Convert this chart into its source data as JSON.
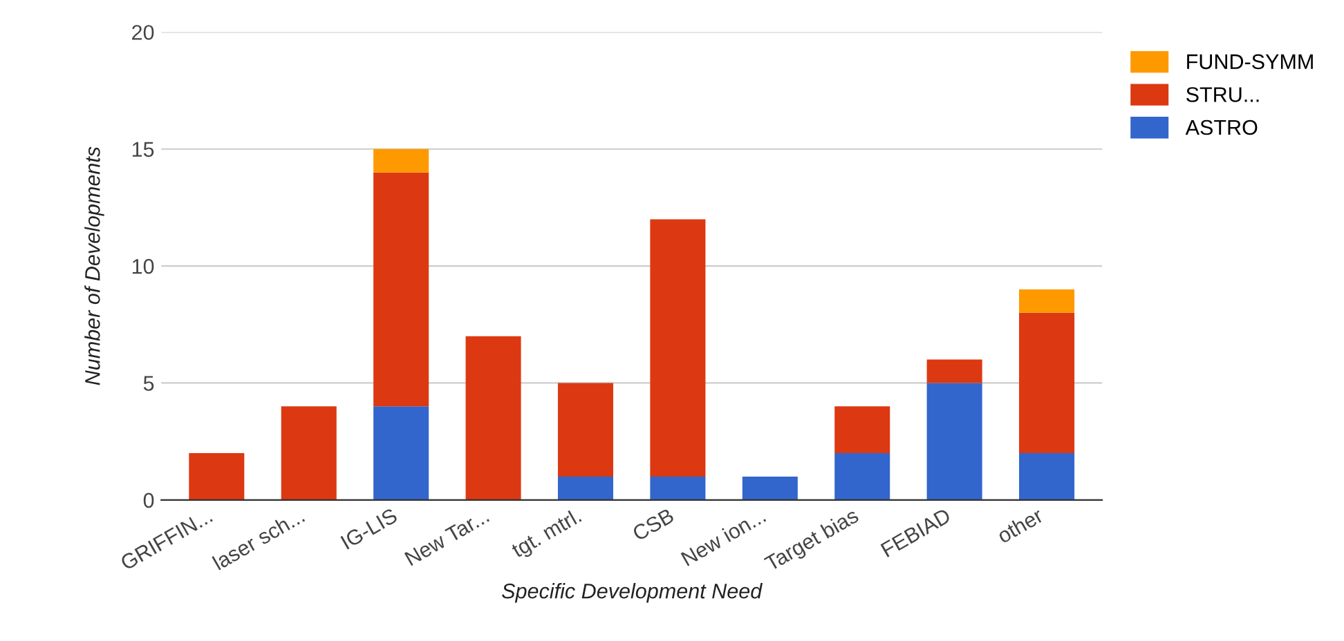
{
  "chart_data": {
    "type": "bar",
    "stacked": true,
    "xlabel": "Specific Development Need",
    "ylabel": "Number of Developments",
    "categories": [
      "GRIFFIN...",
      "laser sch...",
      "IG-LIS",
      "New Tar...",
      "tgt. mtrl.",
      "CSB",
      "New ion...",
      "Target bias",
      "FEBIAD",
      "other"
    ],
    "series": [
      {
        "name": "ASTRO",
        "color": "#3366cc",
        "values": [
          0,
          0,
          4,
          0,
          1,
          1,
          1,
          2,
          5,
          2
        ]
      },
      {
        "name": "STRU...",
        "color": "#dc3912",
        "values": [
          2,
          4,
          10,
          7,
          4,
          11,
          0,
          2,
          1,
          6
        ]
      },
      {
        "name": "FUND-SYMM",
        "color": "#ff9900",
        "values": [
          0,
          0,
          1,
          0,
          0,
          0,
          0,
          0,
          0,
          1
        ]
      }
    ],
    "ylim": [
      0,
      20
    ],
    "yticks": [
      0,
      5,
      10,
      15,
      20
    ],
    "grid": "y",
    "legend": "top right"
  }
}
